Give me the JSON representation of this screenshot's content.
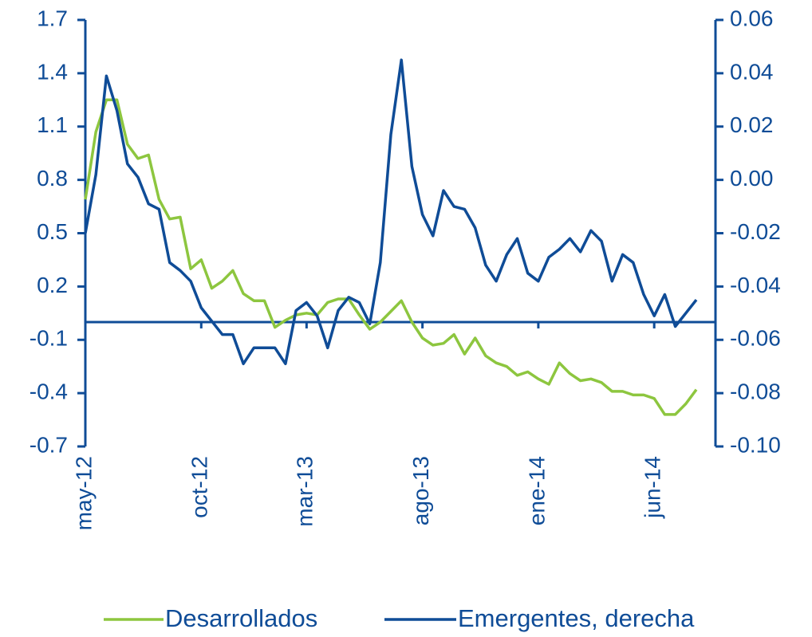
{
  "chart_data": {
    "type": "line",
    "categories": [
      "may-12",
      null,
      null,
      null,
      null,
      null,
      null,
      null,
      null,
      null,
      null,
      "oct-12",
      null,
      null,
      null,
      null,
      null,
      null,
      null,
      null,
      null,
      "mar-13",
      null,
      null,
      null,
      null,
      null,
      null,
      null,
      null,
      null,
      null,
      "ago-13",
      null,
      null,
      null,
      null,
      null,
      null,
      null,
      null,
      null,
      null,
      "ene-14",
      null,
      null,
      null,
      null,
      null,
      null,
      null,
      null,
      null,
      null,
      "jun-14",
      null,
      null,
      null,
      null
    ],
    "series": [
      {
        "name": "Desarrollados",
        "color": "#8DC63F",
        "values": [
          0.69,
          1.07,
          1.25,
          1.25,
          1.0,
          0.92,
          0.94,
          0.69,
          0.58,
          0.59,
          0.3,
          0.35,
          0.19,
          0.23,
          0.29,
          0.16,
          0.12,
          0.12,
          -0.03,
          0.01,
          0.04,
          0.05,
          0.04,
          0.11,
          0.13,
          0.13,
          0.04,
          -0.04,
          0.0,
          0.06,
          0.12,
          0.0,
          -0.09,
          -0.13,
          -0.12,
          -0.07,
          -0.18,
          -0.09,
          -0.19,
          -0.23,
          -0.25,
          -0.3,
          -0.28,
          -0.32,
          -0.35,
          -0.23,
          -0.29,
          -0.33,
          -0.32,
          -0.34,
          -0.39,
          -0.39,
          -0.41,
          -0.41,
          -0.43,
          -0.52,
          -0.52,
          -0.46,
          -0.38
        ]
      },
      {
        "name": "Emergentes, derecha",
        "color": "#0F4C97",
        "axis": "y2",
        "values": [
          -0.02,
          0.002,
          0.039,
          0.026,
          0.006,
          0.001,
          -0.009,
          -0.011,
          -0.031,
          -0.034,
          -0.038,
          -0.048,
          -0.053,
          -0.058,
          -0.058,
          -0.069,
          -0.063,
          -0.063,
          -0.063,
          -0.069,
          -0.049,
          -0.046,
          -0.051,
          -0.063,
          -0.049,
          -0.044,
          -0.046,
          -0.054,
          -0.031,
          0.017,
          0.045,
          0.005,
          -0.013,
          -0.021,
          -0.004,
          -0.01,
          -0.011,
          -0.018,
          -0.032,
          -0.038,
          -0.028,
          -0.022,
          -0.035,
          -0.038,
          -0.029,
          -0.026,
          -0.022,
          -0.027,
          -0.019,
          -0.023,
          -0.038,
          -0.028,
          -0.031,
          -0.043,
          -0.051,
          -0.043,
          -0.055,
          -0.05,
          -0.045
        ]
      }
    ],
    "ylim": [
      -0.7,
      1.7
    ],
    "yticks": [
      1.7,
      1.4,
      1.1,
      0.8,
      0.5,
      0.2,
      -0.1,
      -0.4,
      -0.7
    ],
    "y2lim": [
      -0.1,
      0.06
    ],
    "y2ticks": [
      0.06,
      0.04,
      0.02,
      {
        "value": 0,
        "label": "0.00"
      },
      -0.02,
      -0.04,
      -0.06,
      -0.08,
      {
        "value": -0.1,
        "label": "-0.10"
      }
    ]
  }
}
